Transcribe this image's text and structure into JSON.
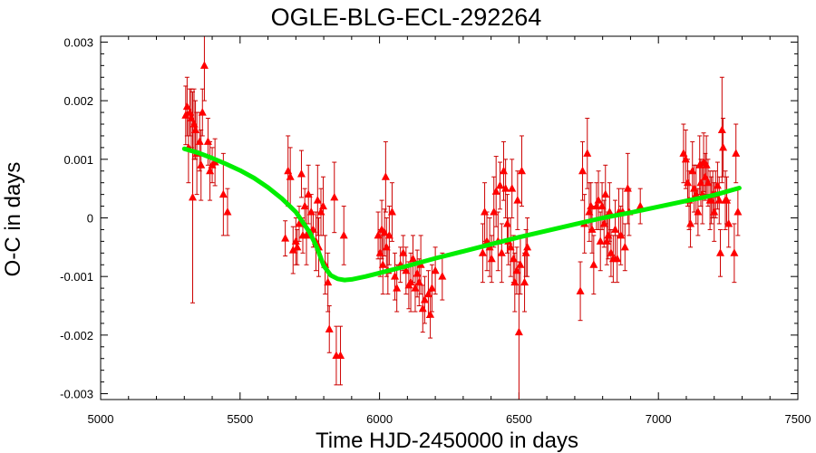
{
  "chart_data": {
    "type": "scatter",
    "title": "OGLE-BLG-ECL-292264",
    "xlabel": "Time HJD-2450000 in days",
    "ylabel": "O-C in days",
    "xlim": [
      5000,
      7500
    ],
    "ylim": [
      -0.0031,
      0.0031
    ],
    "xticks": [
      5000,
      5500,
      6000,
      6500,
      7000,
      7500
    ],
    "xtick_labels": [
      "5000",
      "5500",
      "6000",
      "6500",
      "7000",
      "7500"
    ],
    "yticks": [
      -0.003,
      -0.002,
      -0.001,
      0,
      0.001,
      0.002,
      0.003
    ],
    "ytick_labels": [
      "-0.003",
      "-0.002",
      "-0.001",
      "0",
      "0.001",
      "0.002",
      "0.003"
    ],
    "grid": false,
    "colors": {
      "points": "#ff0000",
      "errorbars": "#cc0000",
      "fit": "#00ee00"
    },
    "series": [
      {
        "marker": "triangle",
        "points": [
          [
            5305,
            0.00175,
            0.0005
          ],
          [
            5310,
            0.0019,
            0.0005
          ],
          [
            5315,
            0.0012,
            0.0006
          ],
          [
            5320,
            0.0018,
            0.0004
          ],
          [
            5325,
            0.0017,
            0.0005
          ],
          [
            5330,
            0.00035,
            0.0018
          ],
          [
            5335,
            0.0016,
            0.0006
          ],
          [
            5340,
            0.0015,
            0.0005
          ],
          [
            5345,
            0.0011,
            0.0007
          ],
          [
            5355,
            0.0013,
            0.0005
          ],
          [
            5360,
            0.0009,
            0.0006
          ],
          [
            5365,
            0.0018,
            0.0004
          ],
          [
            5372,
            0.0026,
            0.0006
          ],
          [
            5385,
            0.0013,
            0.0004
          ],
          [
            5392,
            0.0008,
            0.0005
          ],
          [
            5400,
            0.0009,
            0.0003
          ],
          [
            5410,
            0.00095,
            0.0004
          ],
          [
            5440,
            0.0004,
            0.0007
          ],
          [
            5455,
            0.0001,
            0.0004
          ],
          [
            5662,
            -0.00035,
            0.0003
          ],
          [
            5672,
            0.0008,
            0.0006
          ],
          [
            5680,
            0.0007,
            0.0005
          ],
          [
            5690,
            -0.00055,
            0.0004
          ],
          [
            5700,
            -0.0004,
            0.0004
          ],
          [
            5705,
            -0.0005,
            0.0003
          ],
          [
            5712,
            -0.0001,
            0.0003
          ],
          [
            5720,
            0.00075,
            0.0004
          ],
          [
            5725,
            -0.0003,
            0.0003
          ],
          [
            5732,
            0.0002,
            0.0003
          ],
          [
            5738,
            -0.0003,
            0.0005
          ],
          [
            5745,
            0.0004,
            0.0005
          ],
          [
            5755,
            0.0001,
            0.0003
          ],
          [
            5762,
            -0.0002,
            0.0003
          ],
          [
            5772,
            -0.0004,
            0.0005
          ],
          [
            5778,
            0.0003,
            0.0006
          ],
          [
            5782,
            -0.0005,
            0.0005
          ],
          [
            5790,
            0.0001,
            0.0004
          ],
          [
            5798,
            0.0002,
            0.0005
          ],
          [
            5805,
            -0.0008,
            0.0005
          ],
          [
            5815,
            -0.0011,
            0.0005
          ],
          [
            5820,
            -0.0019,
            0.0004
          ],
          [
            5838,
            0.00035,
            0.0006
          ],
          [
            5845,
            -0.00235,
            0.0005
          ],
          [
            5860,
            -0.00235,
            0.0005
          ],
          [
            5872,
            -0.0003,
            0.0005
          ],
          [
            5995,
            -0.0003,
            0.0004
          ],
          [
            6002,
            -0.0006,
            0.0004
          ],
          [
            6008,
            -0.0002,
            0.0005
          ],
          [
            6012,
            -0.0008,
            0.0005
          ],
          [
            6018,
            -0.00025,
            0.0004
          ],
          [
            6022,
            0.0007,
            0.0006
          ],
          [
            6025,
            -0.0005,
            0.0005
          ],
          [
            6030,
            -0.0009,
            0.0004
          ],
          [
            6035,
            -0.0003,
            0.0005
          ],
          [
            6045,
            0.0001,
            0.0005
          ],
          [
            6055,
            -0.001,
            0.0004
          ],
          [
            6062,
            -0.0012,
            0.0004
          ],
          [
            6075,
            -0.0008,
            0.0003
          ],
          [
            6085,
            -0.0006,
            0.0003
          ],
          [
            6095,
            -0.0009,
            0.0004
          ],
          [
            6105,
            -0.00115,
            0.0004
          ],
          [
            6112,
            -0.0011,
            0.0005
          ],
          [
            6120,
            -0.0007,
            0.0004
          ],
          [
            6128,
            -0.0012,
            0.0004
          ],
          [
            6135,
            -0.00095,
            0.0004
          ],
          [
            6142,
            -0.0011,
            0.0004
          ],
          [
            6148,
            -0.0008,
            0.0005
          ],
          [
            6155,
            -0.00155,
            0.0004
          ],
          [
            6162,
            -0.0014,
            0.0004
          ],
          [
            6175,
            -0.0013,
            0.0004
          ],
          [
            6182,
            -0.00165,
            0.0004
          ],
          [
            6188,
            -0.0012,
            0.0004
          ],
          [
            6200,
            -0.0009,
            0.0004
          ],
          [
            6225,
            -0.001,
            0.0004
          ],
          [
            6370,
            -0.0006,
            0.0005
          ],
          [
            6377,
            0.0001,
            0.0005
          ],
          [
            6385,
            -0.0004,
            0.0005
          ],
          [
            6395,
            -0.0005,
            0.0005
          ],
          [
            6402,
            -0.0007,
            0.0004
          ],
          [
            6410,
            0.0001,
            0.0006
          ],
          [
            6418,
            0.00045,
            0.0006
          ],
          [
            6425,
            -0.0004,
            0.0005
          ],
          [
            6432,
            0.00055,
            0.0004
          ],
          [
            6438,
            -0.0006,
            0.0005
          ],
          [
            6445,
            0.0008,
            0.0005
          ],
          [
            6452,
            0.0005,
            0.0005
          ],
          [
            6458,
            -0.0001,
            0.0005
          ],
          [
            6462,
            -0.0004,
            0.0004
          ],
          [
            6470,
            -0.0005,
            0.0005
          ],
          [
            6475,
            0.0005,
            0.0005
          ],
          [
            6480,
            -0.0007,
            0.0004
          ],
          [
            6485,
            -0.0011,
            0.0005
          ],
          [
            6492,
            -0.0009,
            0.0004
          ],
          [
            6495,
            0.0003,
            0.0005
          ],
          [
            6500,
            -0.00195,
            0.0012
          ],
          [
            6505,
            -0.0008,
            0.0005
          ],
          [
            6510,
            0.0008,
            0.0006
          ],
          [
            6520,
            -0.0011,
            0.0005
          ],
          [
            6525,
            -0.0006,
            0.0004
          ],
          [
            6530,
            -0.0005,
            0.0005
          ],
          [
            6720,
            -0.00125,
            0.0005
          ],
          [
            6728,
            0.0008,
            0.0005
          ],
          [
            6735,
            -0.0001,
            0.0005
          ],
          [
            6745,
            0.0011,
            0.0006
          ],
          [
            6752,
            0.0001,
            0.0005
          ],
          [
            6758,
            0.0002,
            0.0004
          ],
          [
            6762,
            -0.0002,
            0.0004
          ],
          [
            6768,
            -0.0008,
            0.0005
          ],
          [
            6778,
            0.0002,
            0.0004
          ],
          [
            6785,
            0.0003,
            0.0005
          ],
          [
            6792,
            -0.0004,
            0.0005
          ],
          [
            6798,
            0.0002,
            0.0004
          ],
          [
            6805,
            -0.0001,
            0.0004
          ],
          [
            6810,
            0.0004,
            0.0005
          ],
          [
            6815,
            -0.0004,
            0.0004
          ],
          [
            6820,
            -0.0003,
            0.0004
          ],
          [
            6825,
            0.0001,
            0.0005
          ],
          [
            6830,
            -0.0006,
            0.0004
          ],
          [
            6838,
            -0.0007,
            0.0004
          ],
          [
            6845,
            -0.0002,
            0.0005
          ],
          [
            6852,
            -0.0007,
            0.0004
          ],
          [
            6858,
            0.0001,
            0.0004
          ],
          [
            6865,
            -0.0003,
            0.0005
          ],
          [
            6872,
            0.0001,
            0.0004
          ],
          [
            6880,
            -0.0005,
            0.0004
          ],
          [
            6890,
            0.0005,
            0.0006
          ],
          [
            6895,
            0.0001,
            0.0004
          ],
          [
            6935,
            0.0002,
            0.0003
          ],
          [
            7090,
            0.0011,
            0.0005
          ],
          [
            7098,
            0.001,
            0.0005
          ],
          [
            7105,
            0.0006,
            0.0004
          ],
          [
            7110,
            0.0003,
            0.0005
          ],
          [
            7115,
            -0.0001,
            0.0004
          ],
          [
            7122,
            0.0008,
            0.0005
          ],
          [
            7128,
            0.0005,
            0.0004
          ],
          [
            7135,
            0.0004,
            0.0005
          ],
          [
            7142,
            0.0001,
            0.0004
          ],
          [
            7148,
            0.0009,
            0.0005
          ],
          [
            7152,
            0.0006,
            0.0004
          ],
          [
            7158,
            0.0004,
            0.0005
          ],
          [
            7162,
            0.00095,
            0.0005
          ],
          [
            7168,
            0.0007,
            0.0004
          ],
          [
            7172,
            0.0009,
            0.0005
          ],
          [
            7178,
            0.0006,
            0.0004
          ],
          [
            7185,
            0.0003,
            0.0005
          ],
          [
            7190,
            0.0003,
            0.0004
          ],
          [
            7195,
            0.0004,
            0.0004
          ],
          [
            7200,
            0.0001,
            0.0005
          ],
          [
            7205,
            0.0004,
            0.0004
          ],
          [
            7212,
            0.00055,
            0.0004
          ],
          [
            7218,
            0.0003,
            0.0004
          ],
          [
            7222,
            -0.0006,
            0.0004
          ],
          [
            7228,
            0.0015,
            0.0009
          ],
          [
            7232,
            0.0012,
            0.0005
          ],
          [
            7240,
            0.0003,
            0.0005
          ],
          [
            7245,
            0.0003,
            0.0004
          ],
          [
            7252,
            -0.0001,
            0.0004
          ],
          [
            7272,
            -0.0006,
            0.0005
          ],
          [
            7278,
            0.0011,
            0.0005
          ],
          [
            7285,
            0.0001,
            0.0004
          ]
        ]
      },
      {
        "type": "line",
        "x": [
          5300,
          5350,
          5400,
          5450,
          5500,
          5550,
          5600,
          5650,
          5700,
          5750,
          5775,
          5800,
          5825,
          5850,
          5875,
          5900,
          5950,
          6000,
          6100,
          6200,
          6300,
          6400,
          6500,
          6600,
          6700,
          6800,
          6900,
          7000,
          7100,
          7200,
          7290
        ],
        "values": [
          0.00118,
          0.00111,
          0.00102,
          0.00092,
          0.00081,
          0.00068,
          0.00052,
          0.00033,
          0.0001,
          -0.00025,
          -0.0005,
          -0.00082,
          -0.00098,
          -0.00104,
          -0.00106,
          -0.00105,
          -0.001,
          -0.00094,
          -0.00082,
          -0.00069,
          -0.00057,
          -0.00045,
          -0.00033,
          -0.00022,
          -0.00011,
          0.0,
          9e-05,
          0.00019,
          0.00029,
          0.00039,
          0.00051
        ]
      }
    ]
  }
}
